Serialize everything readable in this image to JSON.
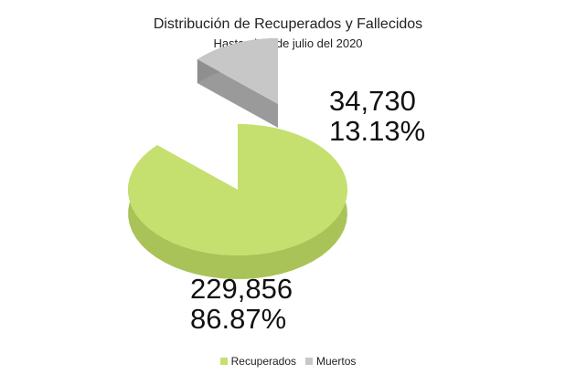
{
  "chart_data": {
    "type": "pie",
    "title": "Distribución de Recuperados y Fallecidos",
    "subtitle": "Hasta el 11 de julio del 2020",
    "series": [
      {
        "name": "Recuperados",
        "value": 229856,
        "value_label": "229,856",
        "percent_label": "86.87%",
        "color": "#c5e06f",
        "side_color": "#a9c358"
      },
      {
        "name": "Muertos",
        "value": 34730,
        "value_label": "34,730",
        "percent_label": "13.13%",
        "color": "#c7c7c7",
        "side_color": "#8f8f8f"
      }
    ],
    "legend_position": "bottom",
    "style": "3d-exploded"
  }
}
